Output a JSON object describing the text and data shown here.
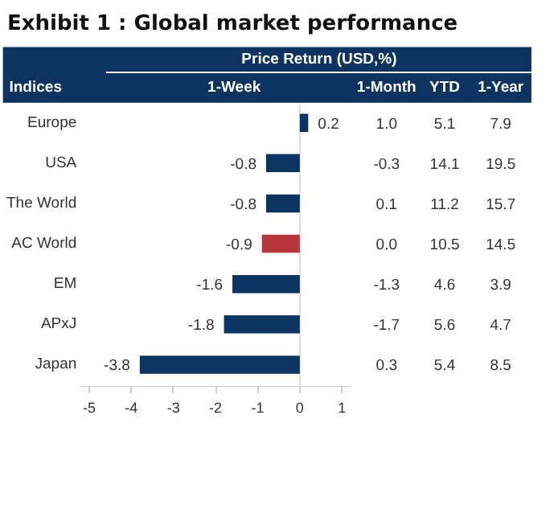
{
  "chart_data": {
    "type": "bar",
    "orientation": "horizontal",
    "title": "Exhibit 1 : Global market performance",
    "ylabel": "Indices",
    "xlabel": "1-Week",
    "categories": [
      "Europe",
      "USA",
      "The World",
      "AC World",
      "EM",
      "APxJ",
      "Japan"
    ],
    "values": [
      0.2,
      -0.8,
      -0.8,
      -0.9,
      -1.6,
      -1.8,
      -3.8
    ],
    "colors": [
      "#0d3461",
      "#0d3461",
      "#0d3461",
      "#b5373a",
      "#0d3461",
      "#0d3461",
      "#0d3461"
    ],
    "xlim": [
      -5.2,
      1.2
    ],
    "xticks": [
      -5,
      -4,
      -3,
      -2,
      -1,
      0,
      1
    ],
    "data_labels": true,
    "ref_lines": [
      {
        "axis": "x",
        "value": 0,
        "color": "#dddddd"
      }
    ],
    "annotations": [
      "Price Return (USD,%)",
      "1-Month",
      "YTD",
      "1-Year",
      "1.0",
      "5.1",
      "7.9",
      "-0.3",
      "14.1",
      "19.5",
      "0.1",
      "11.2",
      "15.7",
      "0.0",
      "10.5",
      "14.5",
      "-1.3",
      "4.6",
      "3.9",
      "-1.7",
      "5.6",
      "4.7",
      "0.3",
      "5.4",
      "8.5"
    ]
  }
}
